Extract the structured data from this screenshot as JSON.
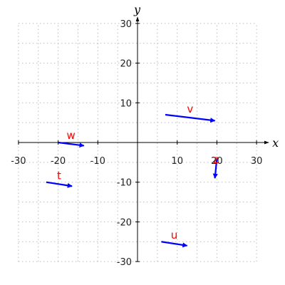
{
  "chart_data": {
    "type": "vector-field",
    "xlabel": "x",
    "ylabel": "y",
    "xlim": [
      -30,
      30
    ],
    "ylim": [
      -30,
      30
    ],
    "xticks": [
      -30,
      -20,
      -10,
      10,
      20,
      30
    ],
    "yticks": [
      -30,
      -20,
      -10,
      10,
      20,
      30
    ],
    "grid": true,
    "vector_color": "#0000ff",
    "label_color": "#ff0000",
    "vectors": [
      {
        "name": "v",
        "from": [
          7,
          7
        ],
        "to": [
          19.5,
          5.5
        ]
      },
      {
        "name": "w",
        "from": [
          -20,
          0
        ],
        "to": [
          -13.5,
          -0.8
        ]
      },
      {
        "name": "t",
        "from": [
          -23,
          -10
        ],
        "to": [
          -16.5,
          -11
        ]
      },
      {
        "name": "z",
        "from": [
          20,
          -4
        ],
        "to": [
          19.5,
          -9
        ]
      },
      {
        "name": "u",
        "from": [
          6,
          -25
        ],
        "to": [
          12.5,
          -26
        ]
      }
    ]
  }
}
